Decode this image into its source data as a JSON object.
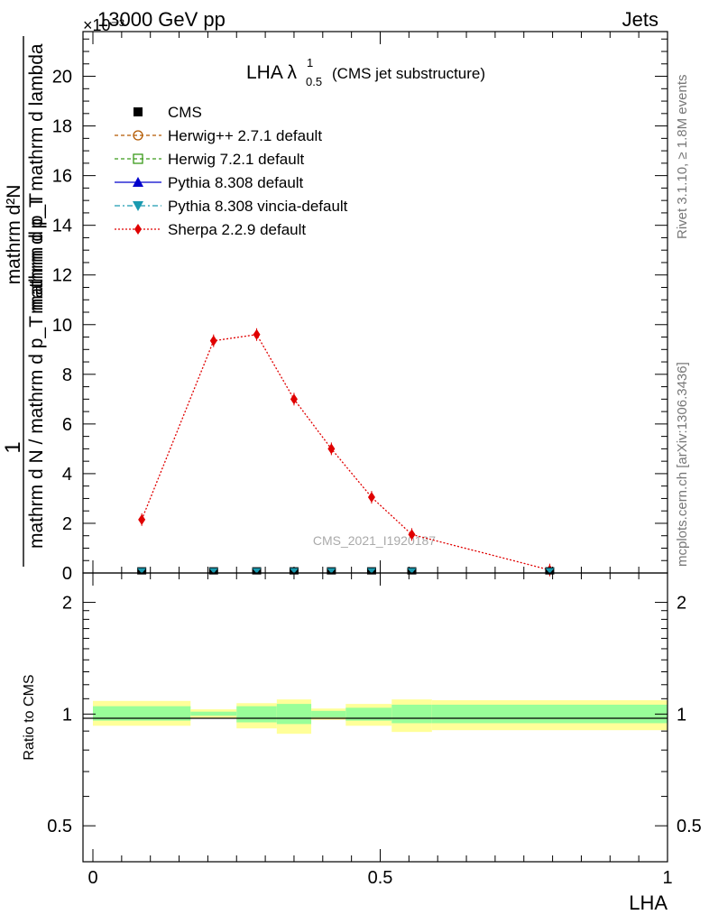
{
  "header": {
    "left": "13000 GeV pp",
    "right": "Jets",
    "exponent": "×10⁻³"
  },
  "side_labels": {
    "rivet": "Rivet 3.1.10, ≥ 1.8M events",
    "mcplots": "mcplots.cern.ch [arXiv:1306.3436]"
  },
  "watermark": "CMS_2021_I1920187",
  "chart_data": [
    {
      "type": "line",
      "title_main": "LHA λ",
      "title_sup": "1",
      "title_sub": "0.5",
      "title_rest": "(CMS jet substructure)",
      "ylabel": {
        "top_numerator": "1",
        "top_denominator": "mathrm d N / mathrm d p_T mathrm d p_T",
        "numerator": "mathrm d²N",
        "denominator": "mathrm d p_T mathrm d lambda"
      },
      "xlim": [
        0,
        1
      ],
      "ylim": [
        0,
        21.8
      ],
      "y_scale_label": "×10⁻³",
      "yticks": [
        0,
        2,
        4,
        6,
        8,
        10,
        12,
        14,
        16,
        18,
        20
      ],
      "legend": [
        {
          "label": "CMS",
          "color": "#000000",
          "marker": "square-filled",
          "line": "none"
        },
        {
          "label": "Herwig++ 2.7.1 default",
          "color": "#b35900",
          "marker": "circle-open",
          "line": "dashed"
        },
        {
          "label": "Herwig 7.2.1 default",
          "color": "#3a9a1a",
          "marker": "square-open",
          "line": "dashed"
        },
        {
          "label": "Pythia 8.308 default",
          "color": "#0000cc",
          "marker": "triangle-up",
          "line": "solid"
        },
        {
          "label": "Pythia 8.308 vincia-default",
          "color": "#1a9ab0",
          "marker": "triangle-down",
          "line": "dashdot"
        },
        {
          "label": "Sherpa 2.2.9 default",
          "color": "#e00000",
          "marker": "diamond",
          "line": "dotted"
        }
      ],
      "bins": [
        [
          0,
          0.17
        ],
        [
          0.17,
          0.25
        ],
        [
          0.25,
          0.32
        ],
        [
          0.32,
          0.38
        ],
        [
          0.38,
          0.44
        ],
        [
          0.44,
          0.52
        ],
        [
          0.52,
          0.59
        ],
        [
          0.59,
          1.0
        ]
      ],
      "series": [
        {
          "name": "Sherpa 2.2.9 default",
          "x": [
            0.085,
            0.21,
            0.285,
            0.35,
            0.415,
            0.485,
            0.555,
            0.795
          ],
          "y": [
            2.15,
            9.35,
            9.6,
            7.0,
            5.0,
            3.05,
            1.55,
            0.12
          ]
        },
        {
          "name": "CMS",
          "x": [
            0.085,
            0.21,
            0.285,
            0.35,
            0.415,
            0.485,
            0.555,
            0.795
          ],
          "y": [
            0.05,
            0.05,
            0.05,
            0.05,
            0.05,
            0.05,
            0.05,
            0.05
          ]
        }
      ]
    },
    {
      "type": "area",
      "ylabel": "Ratio to CMS",
      "xlabel": "LHA",
      "xlim": [
        0,
        1
      ],
      "ylim": [
        0.4,
        2.4
      ],
      "y_scale": "log",
      "yticks": [
        0.5,
        1,
        2
      ],
      "xticks": [
        0,
        0.5,
        1
      ],
      "bands": {
        "bins": [
          [
            0,
            0.17
          ],
          [
            0.17,
            0.25
          ],
          [
            0.25,
            0.32
          ],
          [
            0.32,
            0.38
          ],
          [
            0.38,
            0.44
          ],
          [
            0.44,
            0.52
          ],
          [
            0.52,
            0.59
          ],
          [
            0.59,
            1.0
          ]
        ],
        "outer_low": [
          0.93,
          0.975,
          0.915,
          0.885,
          0.965,
          0.93,
          0.895,
          0.905
        ],
        "outer_high": [
          1.085,
          1.03,
          1.07,
          1.095,
          1.035,
          1.065,
          1.095,
          1.09
        ],
        "inner_low": [
          0.96,
          0.99,
          0.95,
          0.94,
          0.98,
          0.96,
          0.945,
          0.945
        ],
        "inner_high": [
          1.05,
          1.015,
          1.05,
          1.065,
          1.02,
          1.04,
          1.06,
          1.06
        ],
        "outer_color": "#ffff99",
        "inner_color": "#99ff99"
      }
    }
  ]
}
